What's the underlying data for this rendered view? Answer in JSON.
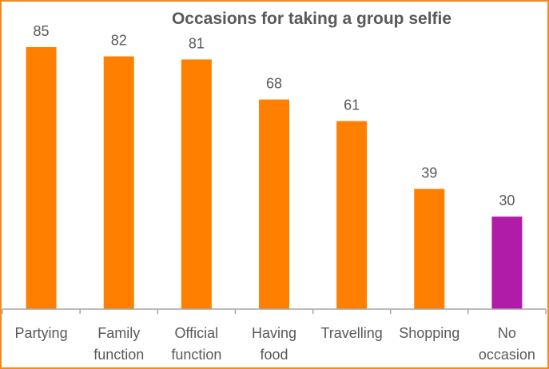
{
  "chart_data": {
    "type": "bar",
    "title": "Occasions for taking a group selfie",
    "categories": [
      [
        "Partying"
      ],
      [
        "Family",
        "function"
      ],
      [
        "Official",
        "function"
      ],
      [
        "Having",
        "food"
      ],
      [
        "Travelling"
      ],
      [
        "Shopping"
      ],
      [
        "No",
        "occasion"
      ]
    ],
    "values": [
      85,
      82,
      81,
      68,
      61,
      39,
      30
    ],
    "colors": [
      "#ff8000",
      "#ff8000",
      "#ff8000",
      "#ff8000",
      "#ff8000",
      "#ff8000",
      "#b01ba8"
    ],
    "xlabel": "",
    "ylabel": "",
    "ylim": [
      0,
      100
    ],
    "grid": false,
    "legend": "none"
  }
}
